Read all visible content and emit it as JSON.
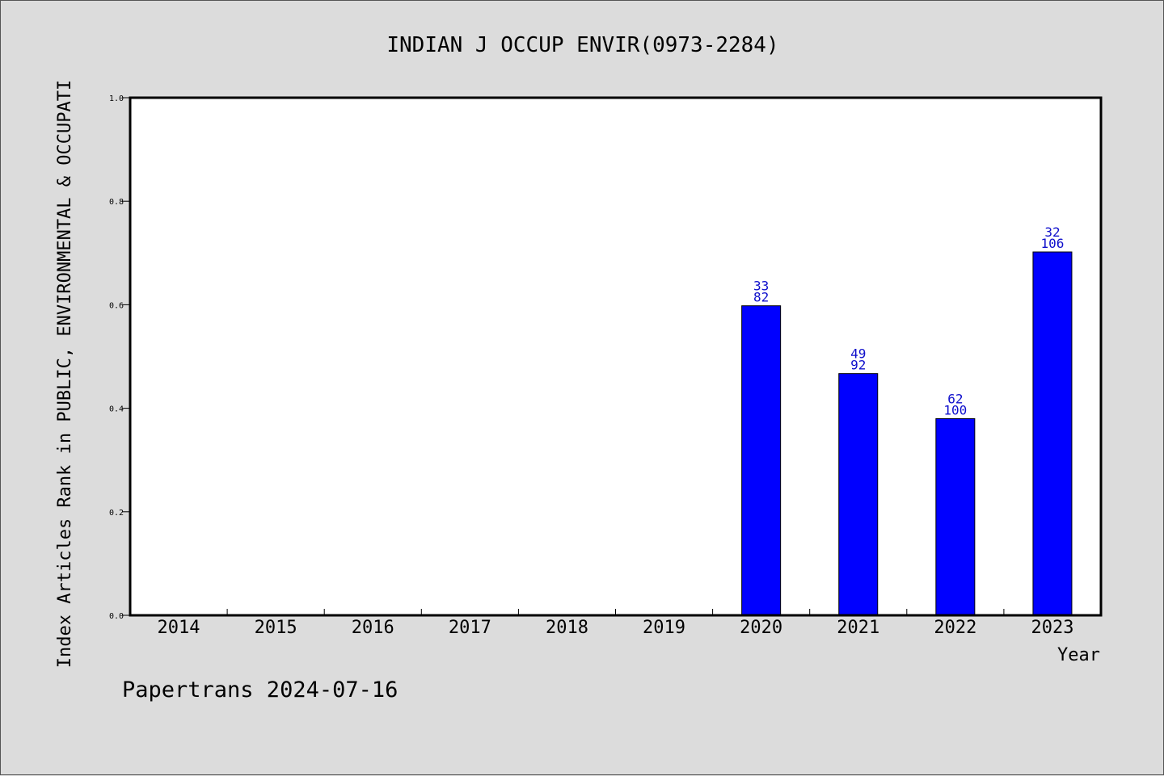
{
  "chart_data": {
    "type": "bar",
    "title": "INDIAN J OCCUP ENVIR(0973-2284)",
    "xlabel": "Year",
    "ylabel": "Index Articles Rank in PUBLIC, ENVIRONMENTAL & OCCUPATI",
    "categories": [
      "2014",
      "2015",
      "2016",
      "2017",
      "2018",
      "2019",
      "2020",
      "2021",
      "2022",
      "2023"
    ],
    "values": [
      null,
      null,
      null,
      null,
      null,
      null,
      0.598,
      0.467,
      0.38,
      0.702
    ],
    "label_top": [
      "",
      "",
      "",
      "",
      "",
      "",
      "33",
      "49",
      "62",
      "32"
    ],
    "label_bottom": [
      "",
      "",
      "",
      "",
      "",
      "",
      "82",
      "92",
      "100",
      "106"
    ],
    "ylim": [
      0,
      1.0
    ],
    "yticks": [
      "0.0",
      "0.2",
      "0.4",
      "0.6",
      "0.8",
      "1.0"
    ],
    "grid": false,
    "bar_color": "#0000ff",
    "label_color": "#1010cc",
    "background_color": "#dcdcdc",
    "plot_background_color": "#ffffff"
  },
  "footer": "Papertrans 2024-07-16"
}
